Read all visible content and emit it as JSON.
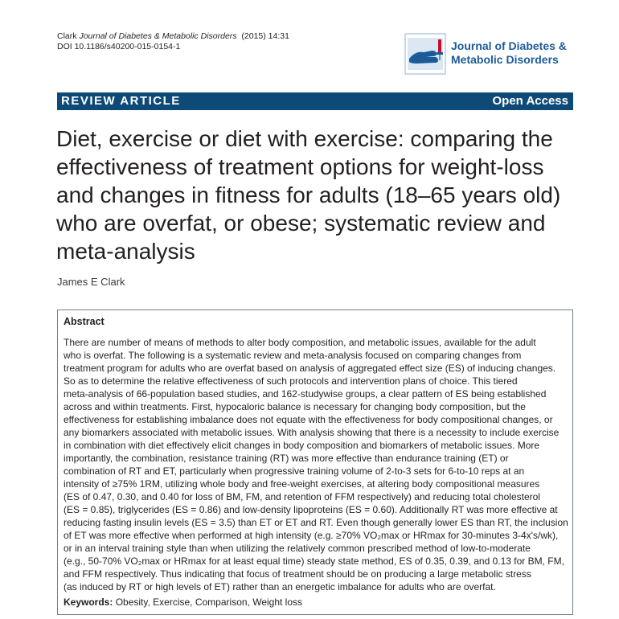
{
  "citation": {
    "author": "Clark",
    "journal": "Journal of Diabetes & Metabolic Disorders",
    "volume_info": "(2015) 14:31",
    "doi": "DOI 10.1186/s40200-015-0154-1"
  },
  "logo": {
    "title_line1": "Journal of Diabetes &",
    "title_line2": "Metabolic Disorders"
  },
  "banner": {
    "article_type": "REVIEW ARTICLE",
    "access": "Open Access"
  },
  "article": {
    "title": "Diet, exercise or diet with exercise: comparing the effectiveness of treatment options for weight-loss and changes in fitness for adults (18–65 years old) who are overfat, or obese; systematic review and meta-analysis",
    "author": "James E Clark"
  },
  "abstract": {
    "heading": "Abstract",
    "text": "There are number of means of methods to alter body composition, and metabolic issues, available for the adult\nwho is overfat. The following is a systematic review and meta-analysis focused on comparing changes from\ntreatment program for adults who are overfat based on analysis of aggregated effect size (ES) of inducing changes.\nSo as to determine the relative effectiveness of such protocols and intervention plans of choice. This tiered\nmeta-analysis of 66-population based studies, and 162-studywise groups, a clear pattern of ES being established\nacross and within treatments. First, hypocaloric balance is necessary for changing body composition, but the\neffectiveness for establishing imbalance does not equate with the effectiveness for body compositional changes, or\nany biomarkers associated with metabolic issues. With analysis showing that there is a necessity to include exercise\nin combination with diet effectively elicit changes in body composition and biomarkers of metabolic issues. More\nimportantly, the combination, resistance training (RT) was more effective than endurance training (ET) or\ncombination of RT and ET, particularly when progressive training volume of 2-to-3 sets for 6-to-10 reps at an\nintensity of ≥75% 1RM, utilizing whole body and free-weight exercises, at altering body compositional measures\n(ES of 0.47, 0.30, and 0.40 for loss of BM, FM, and retention of FFM respectively) and reducing total cholesterol\n(ES = 0.85), triglycerides (ES = 0.86) and low-density lipoproteins (ES = 0.60). Additionally RT was more effective at\nreducing fasting insulin levels (ES = 3.5) than ET or ET and RT. Even though generally lower ES than RT, the inclusion\nof ET was more effective when performed at high intensity (e.g. ≥70% VO₂max or HRmax for 30-minutes 3-4x's/wk),\nor in an interval training style than when utilizing the relatively common prescribed method of low-to-moderate\n(e.g., 50-70% VO₂max or HRmax for at least equal time) steady state method, ES of 0.35, 0.39, and 0.13 for BM, FM,\nand FFM respectively. Thus indicating that focus of treatment should be on producing a large metabolic stress\n(as induced by RT or high levels of ET) rather than an energetic imbalance for adults who are overfat.",
    "keywords_label": "Keywords:",
    "keywords": "Obesity, Exercise, Comparison, Weight loss"
  }
}
